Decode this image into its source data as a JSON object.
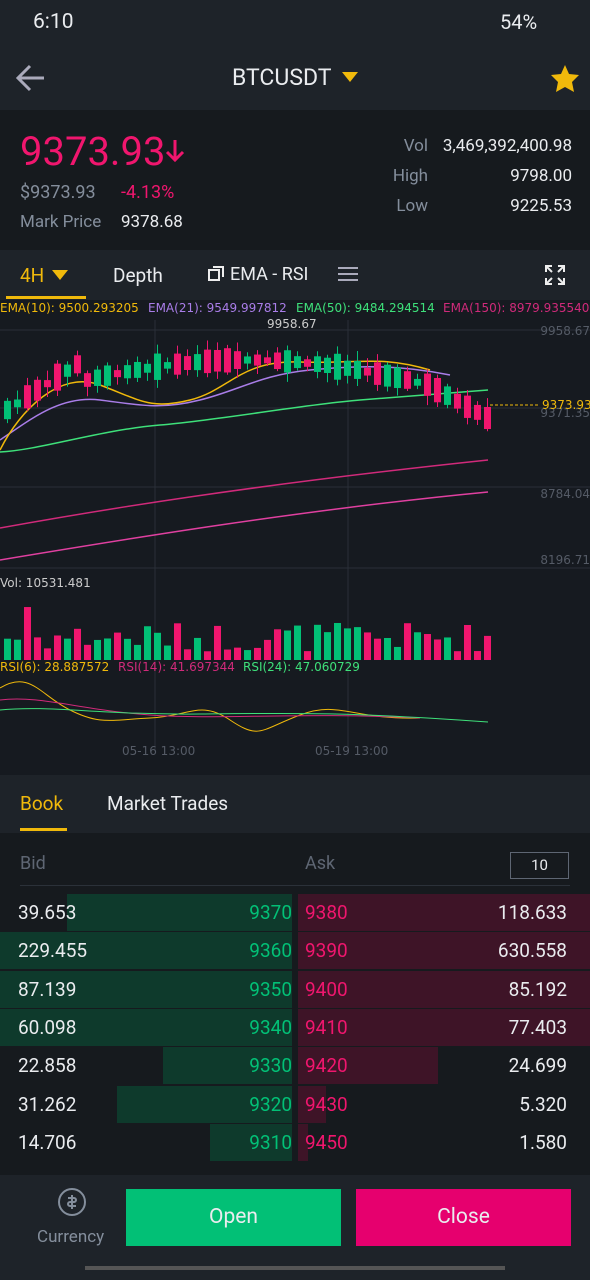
{
  "status_bar": {
    "time": "6:10",
    "battery": "54%"
  },
  "header": {
    "title": "BTCUSDT"
  },
  "ticker": {
    "price": "9373.93",
    "usd_price": "$9373.93",
    "change": "-4.13%",
    "mark_label": "Mark Price",
    "mark_price": "9378.68",
    "stats": [
      {
        "label": "Vol",
        "value": "3,469,392,400.98"
      },
      {
        "label": "High",
        "value": "9798.00"
      },
      {
        "label": "Low",
        "value": "9225.53"
      }
    ]
  },
  "chart_tabs": [
    "4H",
    "Depth",
    "EMA - RSI"
  ],
  "chart": {
    "ema": [
      "EMA(10): 9500.293205",
      "EMA(21): 9549.997812",
      "EMA(50): 9484.294514",
      "EMA(150): 8979.935540"
    ],
    "high_marker": "9958.67",
    "axis": [
      "9958.67",
      "9371.35",
      "8784.04",
      "8196.71"
    ],
    "last_price": "9373.93",
    "volume": "Vol: 10531.481",
    "rsi": [
      "RSI(6): 28.887572",
      "RSI(14): 41.697344",
      "RSI(24): 47.060729"
    ],
    "dates": [
      "05-16 13:00",
      "05-19 13:00"
    ]
  },
  "book_tabs": [
    "Book",
    "Market Trades"
  ],
  "book": {
    "bid_label": "Bid",
    "ask_label": "Ask",
    "depth": "10",
    "rows": [
      [
        "39.653",
        "9370",
        "9380",
        "118.633"
      ],
      [
        "229.455",
        "9360",
        "9390",
        "630.558"
      ],
      [
        "87.139",
        "9350",
        "9400",
        "85.192"
      ],
      [
        "60.098",
        "9340",
        "9410",
        "77.403"
      ],
      [
        "22.858",
        "9330",
        "9420",
        "24.699"
      ],
      [
        "31.262",
        "9320",
        "9430",
        "5.320"
      ],
      [
        "14.706",
        "9310",
        "9450",
        "1.580"
      ]
    ]
  },
  "footer": {
    "currency": "Currency",
    "open": "Open",
    "close": "Close"
  }
}
